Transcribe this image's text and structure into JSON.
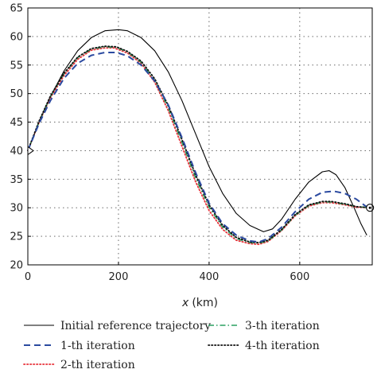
{
  "chart_data": {
    "type": "line",
    "xlabel_var": "x",
    "xlabel_unit": "(km)",
    "ylabel": "",
    "xlim": [
      0,
      760
    ],
    "ylim": [
      20,
      65
    ],
    "xticks": [
      0,
      200,
      400,
      600
    ],
    "yticks": [
      20,
      25,
      30,
      35,
      40,
      45,
      50,
      55,
      60,
      65
    ],
    "grid": true,
    "legend_position": "bottom",
    "start_marker": {
      "x": 0,
      "y": 40,
      "shape": "triangle"
    },
    "end_marker": {
      "x": 755,
      "y": 30,
      "shape": "circle"
    },
    "series": [
      {
        "name": "Initial reference trajectory",
        "color": "#000000",
        "style": "solid",
        "points": [
          [
            0,
            40
          ],
          [
            25,
            45
          ],
          [
            50,
            49.5
          ],
          [
            80,
            54
          ],
          [
            110,
            57.5
          ],
          [
            140,
            59.8
          ],
          [
            170,
            61
          ],
          [
            200,
            61.2
          ],
          [
            220,
            61
          ],
          [
            250,
            59.8
          ],
          [
            280,
            57.5
          ],
          [
            310,
            53.8
          ],
          [
            340,
            48.8
          ],
          [
            370,
            43
          ],
          [
            400,
            37.2
          ],
          [
            430,
            32.5
          ],
          [
            460,
            29
          ],
          [
            490,
            26.9
          ],
          [
            520,
            25.8
          ],
          [
            540,
            26.3
          ],
          [
            560,
            28
          ],
          [
            590,
            31.5
          ],
          [
            620,
            34.5
          ],
          [
            650,
            36.3
          ],
          [
            665,
            36.5
          ],
          [
            680,
            35.8
          ],
          [
            700,
            33.5
          ],
          [
            720,
            30
          ],
          [
            735,
            27.2
          ],
          [
            748,
            25.2
          ]
        ]
      },
      {
        "name": "1-th iteration",
        "color": "#2b4aa0",
        "style": "dashed",
        "points": [
          [
            0,
            40
          ],
          [
            25,
            44.8
          ],
          [
            50,
            48.8
          ],
          [
            80,
            52.7
          ],
          [
            110,
            55.3
          ],
          [
            140,
            56.7
          ],
          [
            170,
            57.2
          ],
          [
            195,
            57.2
          ],
          [
            220,
            56.6
          ],
          [
            250,
            55
          ],
          [
            280,
            52.2
          ],
          [
            310,
            48
          ],
          [
            340,
            42.3
          ],
          [
            370,
            36.2
          ],
          [
            400,
            30.8
          ],
          [
            430,
            27.2
          ],
          [
            460,
            25.2
          ],
          [
            490,
            24.2
          ],
          [
            510,
            24
          ],
          [
            530,
            24.6
          ],
          [
            560,
            26.6
          ],
          [
            590,
            29.3
          ],
          [
            620,
            31.5
          ],
          [
            650,
            32.7
          ],
          [
            675,
            32.9
          ],
          [
            700,
            32.5
          ],
          [
            725,
            31.5
          ],
          [
            745,
            30.3
          ],
          [
            755,
            30
          ]
        ]
      },
      {
        "name": "2-th iteration",
        "color": "#e8323a",
        "style": "dotted",
        "points": [
          [
            0,
            40
          ],
          [
            25,
            45
          ],
          [
            50,
            49.3
          ],
          [
            80,
            53.2
          ],
          [
            110,
            56
          ],
          [
            140,
            57.6
          ],
          [
            170,
            58
          ],
          [
            190,
            58
          ],
          [
            220,
            57.1
          ],
          [
            250,
            55.3
          ],
          [
            280,
            52
          ],
          [
            310,
            47
          ],
          [
            340,
            40.8
          ],
          [
            370,
            34.6
          ],
          [
            400,
            29.5
          ],
          [
            430,
            26.2
          ],
          [
            460,
            24.3
          ],
          [
            490,
            23.7
          ],
          [
            510,
            23.6
          ],
          [
            530,
            24.1
          ],
          [
            560,
            26
          ],
          [
            590,
            28.6
          ],
          [
            620,
            30.3
          ],
          [
            650,
            30.9
          ],
          [
            670,
            30.9
          ],
          [
            700,
            30.5
          ],
          [
            725,
            30.1
          ],
          [
            755,
            30
          ]
        ]
      },
      {
        "name": "3-th iteration",
        "color": "#2aa060",
        "style": "dashdot",
        "points": [
          [
            0,
            40
          ],
          [
            25,
            45.1
          ],
          [
            50,
            49.5
          ],
          [
            80,
            53.5
          ],
          [
            110,
            56.3
          ],
          [
            140,
            57.8
          ],
          [
            170,
            58.2
          ],
          [
            195,
            58.1
          ],
          [
            220,
            57.3
          ],
          [
            250,
            55.5
          ],
          [
            280,
            52.3
          ],
          [
            310,
            47.5
          ],
          [
            340,
            41.5
          ],
          [
            370,
            35.3
          ],
          [
            400,
            30.1
          ],
          [
            430,
            26.6
          ],
          [
            460,
            24.6
          ],
          [
            490,
            23.9
          ],
          [
            510,
            23.8
          ],
          [
            530,
            24.2
          ],
          [
            560,
            26.1
          ],
          [
            590,
            28.7
          ],
          [
            620,
            30.4
          ],
          [
            650,
            31
          ],
          [
            670,
            31
          ],
          [
            700,
            30.6
          ],
          [
            725,
            30.2
          ],
          [
            755,
            30
          ]
        ]
      },
      {
        "name": "4-th iteration",
        "color": "#111111",
        "style": "dotted",
        "points": [
          [
            0,
            40
          ],
          [
            25,
            45.2
          ],
          [
            50,
            49.6
          ],
          [
            80,
            53.6
          ],
          [
            110,
            56.4
          ],
          [
            140,
            57.9
          ],
          [
            170,
            58.3
          ],
          [
            195,
            58.2
          ],
          [
            220,
            57.4
          ],
          [
            250,
            55.7
          ],
          [
            280,
            52.6
          ],
          [
            310,
            47.9
          ],
          [
            340,
            42
          ],
          [
            370,
            35.8
          ],
          [
            400,
            30.5
          ],
          [
            430,
            26.9
          ],
          [
            460,
            24.8
          ],
          [
            490,
            24
          ],
          [
            510,
            23.9
          ],
          [
            530,
            24.3
          ],
          [
            560,
            26.2
          ],
          [
            590,
            28.8
          ],
          [
            620,
            30.5
          ],
          [
            650,
            31.1
          ],
          [
            670,
            31.1
          ],
          [
            700,
            30.7
          ],
          [
            725,
            30.2
          ],
          [
            755,
            30
          ]
        ]
      }
    ]
  }
}
